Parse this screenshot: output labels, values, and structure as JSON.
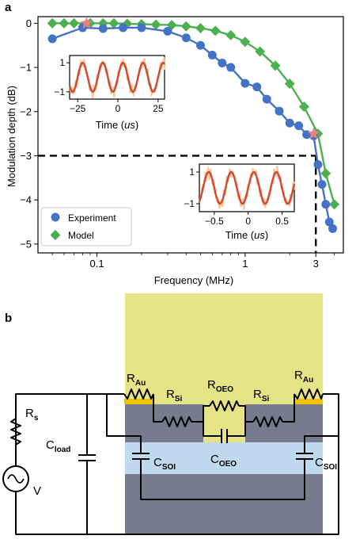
{
  "panel_a": {
    "label": "a",
    "chart_data": {
      "type": "line",
      "title": "",
      "xlabel": "Frequency (MHz)",
      "ylabel": "Modulation depth (dB)",
      "xscale": "log",
      "xlim": [
        0.04,
        4.6
      ],
      "ylim": [
        -5.2,
        0.15
      ],
      "x_ticks": [
        {
          "v": 0.1,
          "t": "0.1"
        },
        {
          "v": 1,
          "t": "1"
        },
        {
          "v": 3,
          "t": "3"
        }
      ],
      "y_ticks": [
        {
          "v": 0,
          "t": "0"
        },
        {
          "v": -1,
          "t": "−1"
        },
        {
          "v": -2,
          "t": "−2"
        },
        {
          "v": -3,
          "t": "−3"
        },
        {
          "v": -4,
          "t": "−4"
        },
        {
          "v": -5,
          "t": "−5"
        }
      ],
      "legend_position": "bottom-left",
      "series": [
        {
          "name": "Experiment",
          "color": "#4472c4",
          "marker": "circle",
          "x": [
            0.05,
            0.08,
            0.11,
            0.15,
            0.2,
            0.3,
            0.4,
            0.5,
            0.6,
            0.7,
            0.8,
            1.0,
            1.2,
            1.4,
            1.7,
            2.0,
            2.3,
            2.6,
            2.9,
            3.1,
            3.3,
            3.5,
            3.7,
            3.9
          ],
          "y": [
            -0.35,
            -0.1,
            -0.12,
            -0.1,
            -0.1,
            -0.18,
            -0.33,
            -0.5,
            -0.72,
            -0.9,
            -1.0,
            -1.36,
            -1.44,
            -1.72,
            -1.99,
            -2.26,
            -2.32,
            -2.52,
            -2.55,
            -3.2,
            -3.65,
            -4.1,
            -4.5,
            -4.65
          ]
        },
        {
          "name": "Model",
          "color": "#4caf50",
          "marker": "diamond",
          "x": [
            0.05,
            0.06,
            0.07,
            0.09,
            0.11,
            0.13,
            0.16,
            0.2,
            0.25,
            0.32,
            0.4,
            0.5,
            0.63,
            0.8,
            1.0,
            1.26,
            1.6,
            2.0,
            2.5,
            3.1,
            3.5,
            4.0
          ],
          "y": [
            0.0,
            0.0,
            0.0,
            0.0,
            0.0,
            0.0,
            -0.01,
            -0.02,
            -0.03,
            -0.04,
            -0.07,
            -0.11,
            -0.17,
            -0.27,
            -0.42,
            -0.64,
            -0.96,
            -1.37,
            -1.89,
            -2.5,
            -3.4,
            -4.1
          ]
        }
      ],
      "highlights": [
        {
          "x": 0.085,
          "y": 0.0,
          "color": "#f08080",
          "marker": "star"
        },
        {
          "x": 2.9,
          "y": -2.5,
          "color": "#f08080",
          "marker": "star"
        }
      ],
      "reference_lines": [
        {
          "type": "horizontal",
          "y": -3,
          "x_end": 3,
          "style": "dashed"
        },
        {
          "type": "vertical",
          "x": 3,
          "y_end": -3,
          "style": "dashed"
        }
      ],
      "insets": [
        {
          "name": "low-frequency-inset",
          "xlabel": "Time (us)",
          "x_ticks": [
            {
              "v": -25,
              "t": "−25"
            },
            {
              "v": 0,
              "t": "0"
            },
            {
              "v": 25,
              "t": "25"
            }
          ],
          "y_ticks": [
            {
              "v": 1,
              "t": "1"
            },
            {
              "v": -1,
              "t": "−1"
            }
          ],
          "xlim": [
            -30,
            29
          ],
          "ylim": [
            -1.5,
            1.5
          ],
          "period": 12.5
        },
        {
          "name": "high-frequency-inset",
          "xlabel": "Time (us)",
          "x_ticks": [
            {
              "v": -0.5,
              "t": "−0.5"
            },
            {
              "v": 0,
              "t": "0"
            },
            {
              "v": 0.5,
              "t": "0.5"
            }
          ],
          "y_ticks": [
            {
              "v": 1,
              "t": "1"
            },
            {
              "v": -1,
              "t": "−1"
            }
          ],
          "xlim": [
            -0.72,
            0.68
          ],
          "ylim": [
            -1.5,
            1.5
          ],
          "period": 0.333
        }
      ]
    }
  },
  "panel_b": {
    "label": "b",
    "labels": {
      "r_au": "R",
      "r_au_sub": "Au",
      "r_si": "R",
      "r_si_sub": "Si",
      "r_oeo": "R",
      "r_oeo_sub": "OEO",
      "c_oeo": "C",
      "c_oeo_sub": "OEO",
      "c_soi": "C",
      "c_soi_sub": "SOI",
      "c_load": "C",
      "c_load_sub": "load",
      "r_s": "R",
      "r_s_sub": "s",
      "v": "V"
    },
    "colors": {
      "top_layer": "#e6e386",
      "device_layer": "#787a8e",
      "soi_layer": "#c0d9ef",
      "gold_pad": "#f2c300",
      "experiment": "#4472c4",
      "model": "#4caf50"
    }
  }
}
